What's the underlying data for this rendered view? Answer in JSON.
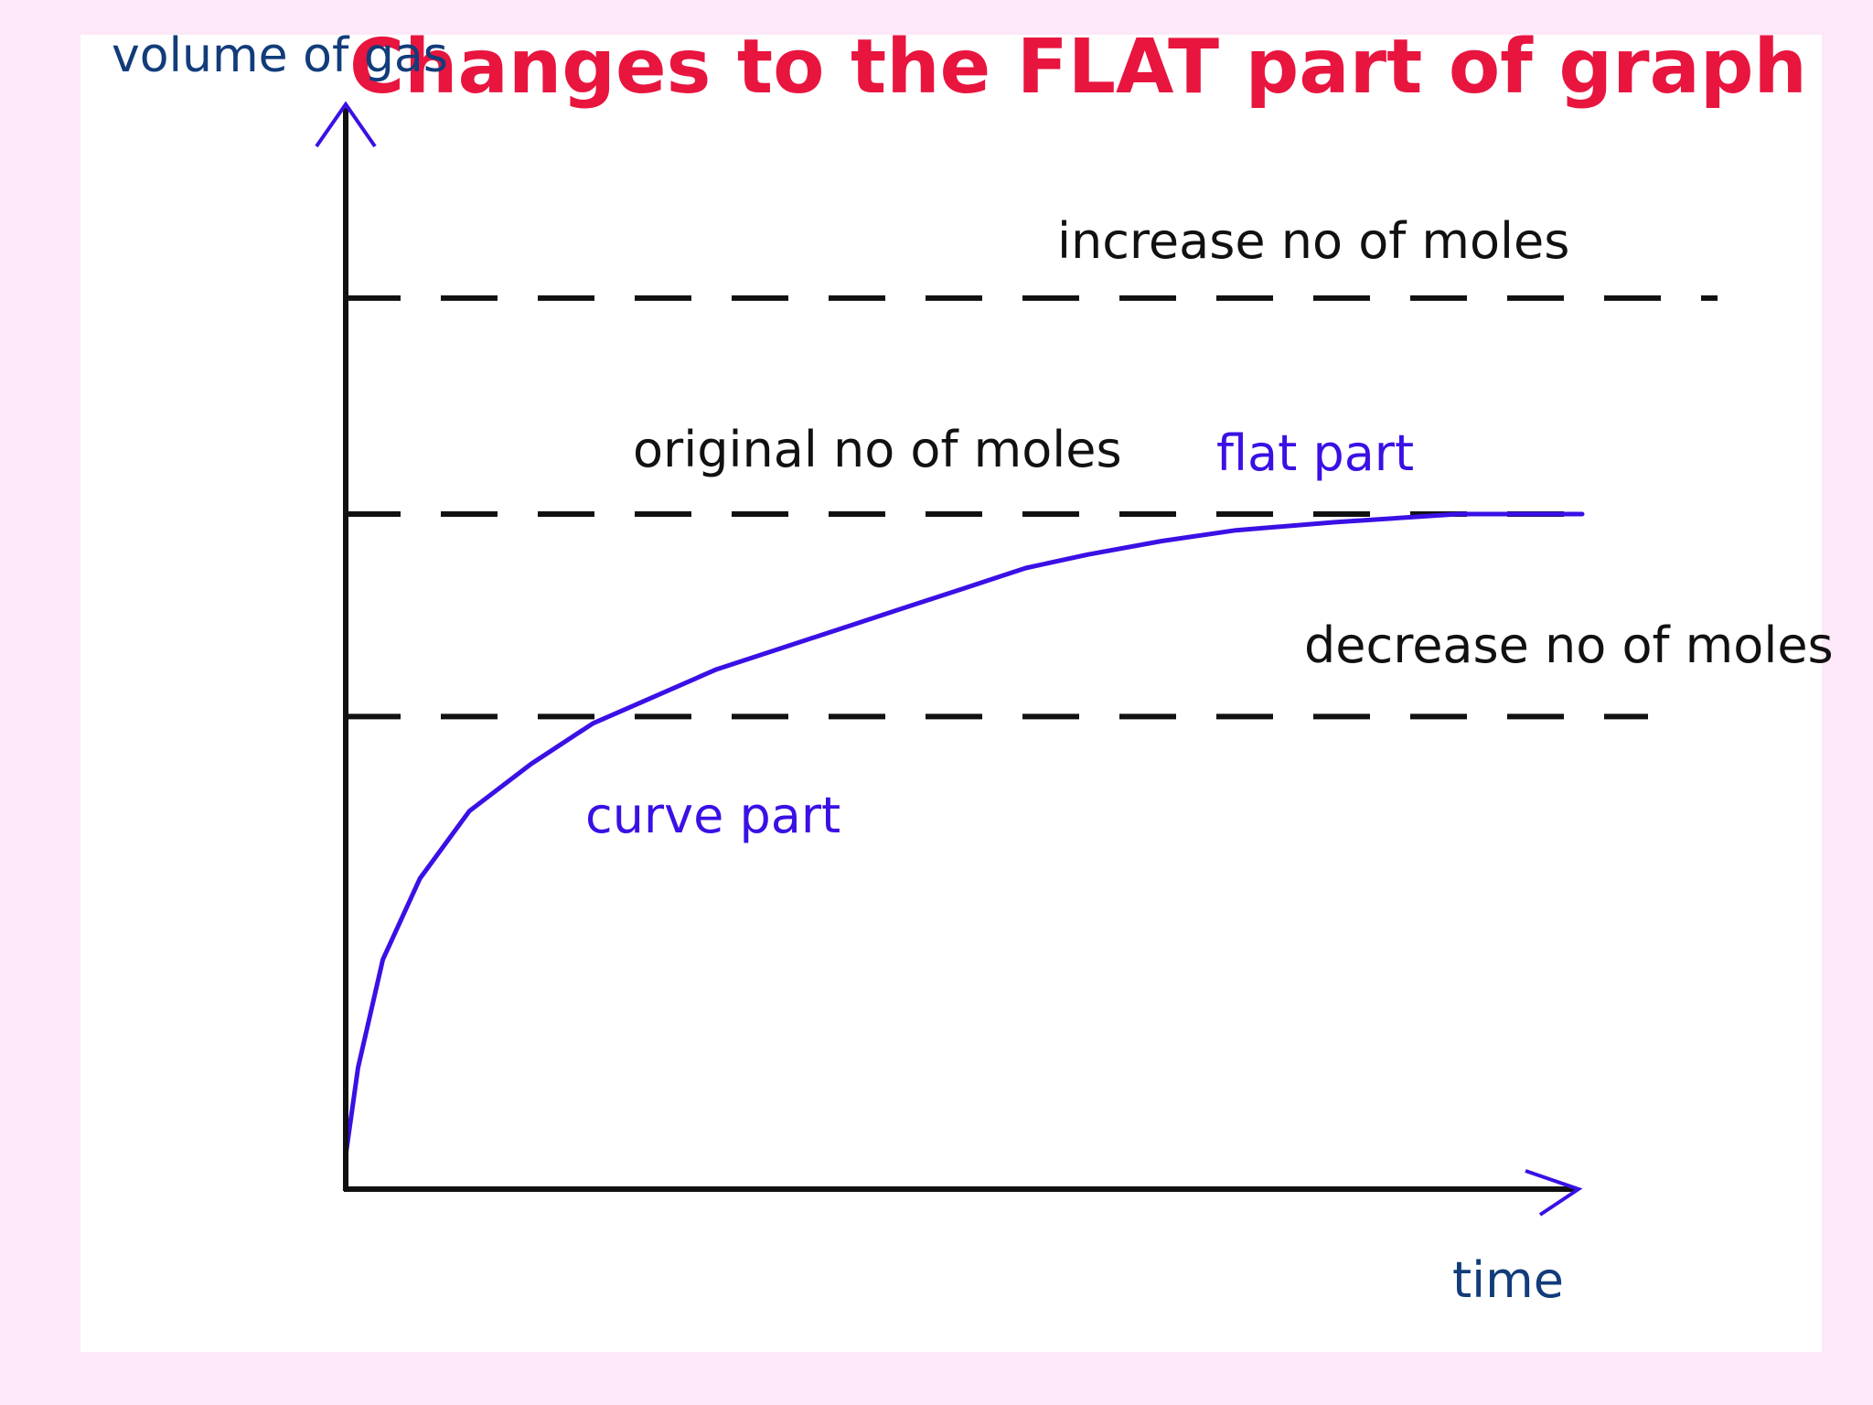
{
  "colors": {
    "page_background": "#fde8f9",
    "panel_background": "#ffffff",
    "title": "#e8153f",
    "axis_label": "#123c7a",
    "curve": "#3a10e5",
    "lines": "#111111"
  },
  "chart_data": {
    "type": "line",
    "title": "Changes to the FLAT part of graph",
    "xlabel": "time",
    "ylabel": "volume of gas",
    "xlim": [
      0,
      100
    ],
    "ylim": [
      0,
      100
    ],
    "grid": false,
    "axes_arrows": true,
    "series": [
      {
        "type": "curve",
        "color": "#3a10e5",
        "style": "solid",
        "x": [
          0,
          1,
          3,
          6,
          10,
          15,
          20,
          25,
          30,
          35,
          40,
          45,
          50,
          55,
          60,
          66,
          72,
          80,
          90,
          100
        ],
        "y": [
          5,
          18,
          34,
          46,
          56,
          63,
          69,
          73,
          77,
          80,
          83,
          86,
          89,
          92,
          94,
          96,
          97.6,
          98.8,
          100,
          100
        ]
      }
    ],
    "reference_lines": [
      {
        "style": "dashed",
        "y": 132
      },
      {
        "style": "dashed",
        "y": 100
      },
      {
        "style": "dashed",
        "y": 70
      }
    ],
    "annotations": [
      {
        "text": "increase no of moles",
        "color": "#111111"
      },
      {
        "text": "original no of moles",
        "color": "#111111"
      },
      {
        "text": "flat part",
        "color": "#3a10e5"
      },
      {
        "text": "decrease no of moles",
        "color": "#111111"
      },
      {
        "text": "curve part",
        "color": "#3a10e5"
      }
    ]
  }
}
